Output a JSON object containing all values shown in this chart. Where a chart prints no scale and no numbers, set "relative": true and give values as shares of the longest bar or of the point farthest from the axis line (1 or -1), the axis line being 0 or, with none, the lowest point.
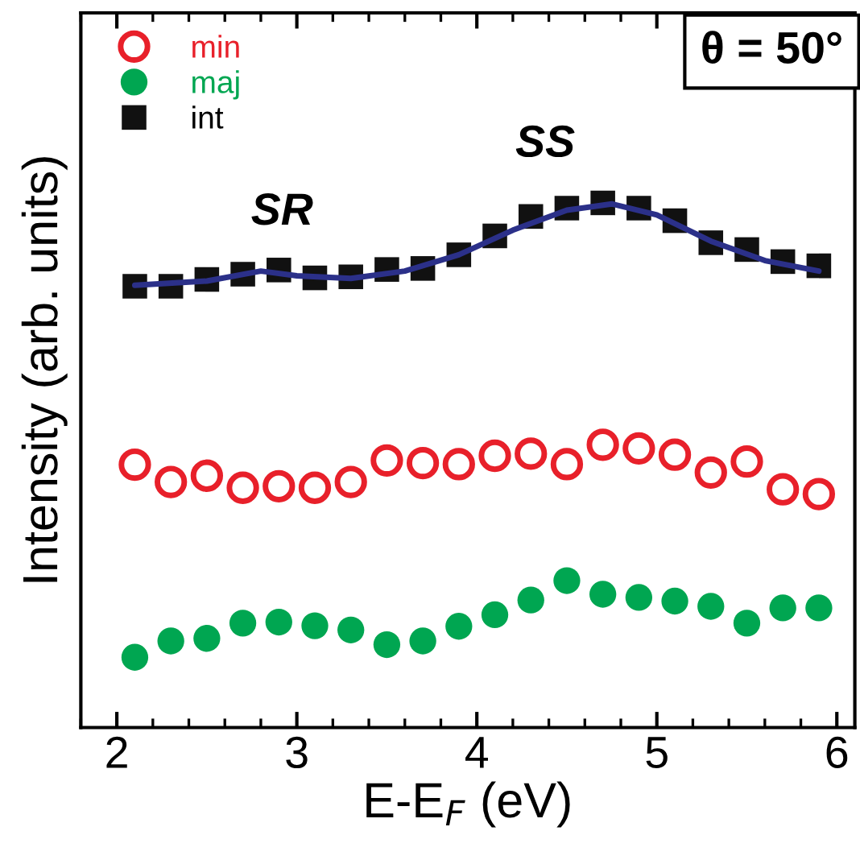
{
  "chart_data": {
    "type": "scatter",
    "relative": true,
    "xlabel": "E-E$_{F}$ (eV)",
    "ylabel": "Intensity (arb. units)",
    "xlim": [
      1.8,
      6.1
    ],
    "xticks": [
      2,
      3,
      4,
      5,
      6
    ],
    "legend": "top left",
    "grid": false,
    "x": [
      2.1,
      2.3,
      2.5,
      2.7,
      2.9,
      3.1,
      3.3,
      3.5,
      3.7,
      3.9,
      4.1,
      4.3,
      4.5,
      4.7,
      4.9,
      5.1,
      5.3,
      5.5,
      5.7,
      5.9
    ],
    "series": [
      {
        "name": "min",
        "color": "#e8202a",
        "marker": "circle",
        "values": [
          0.501,
          0.468,
          0.48,
          0.457,
          0.46,
          0.457,
          0.468,
          0.509,
          0.504,
          0.502,
          0.518,
          0.522,
          0.502,
          0.539,
          0.532,
          0.52,
          0.486,
          0.507,
          0.454,
          0.445
        ]
      },
      {
        "name": "maj",
        "color": "#00a651",
        "marker": "circle",
        "values": [
          0.134,
          0.165,
          0.17,
          0.199,
          0.201,
          0.194,
          0.186,
          0.158,
          0.165,
          0.193,
          0.215,
          0.243,
          0.28,
          0.254,
          0.248,
          0.241,
          0.231,
          0.199,
          0.228,
          0.228
        ]
      },
      {
        "name": "int",
        "color": "#111111",
        "marker": "square",
        "values": [
          0.841,
          0.841,
          0.854,
          0.864,
          0.872,
          0.857,
          0.859,
          0.873,
          0.875,
          0.901,
          0.937,
          0.974,
          0.99,
          1,
          0.99,
          0.966,
          0.924,
          0.911,
          0.888,
          0.88
        ]
      },
      {
        "type": "line",
        "color": "#2b3089",
        "marker": "none",
        "x": [
          2.1,
          2.5,
          2.8,
          3.0,
          3.3,
          3.6,
          3.9,
          4.2,
          4.5,
          4.75,
          5.0,
          5.3,
          5.6,
          5.9
        ],
        "values": [
          0.843,
          0.851,
          0.87,
          0.861,
          0.856,
          0.87,
          0.901,
          0.948,
          0.986,
          0.998,
          0.977,
          0.927,
          0.89,
          0.87
        ]
      }
    ],
    "annotations": [
      "SR",
      "SS",
      "θ = 50°"
    ]
  }
}
